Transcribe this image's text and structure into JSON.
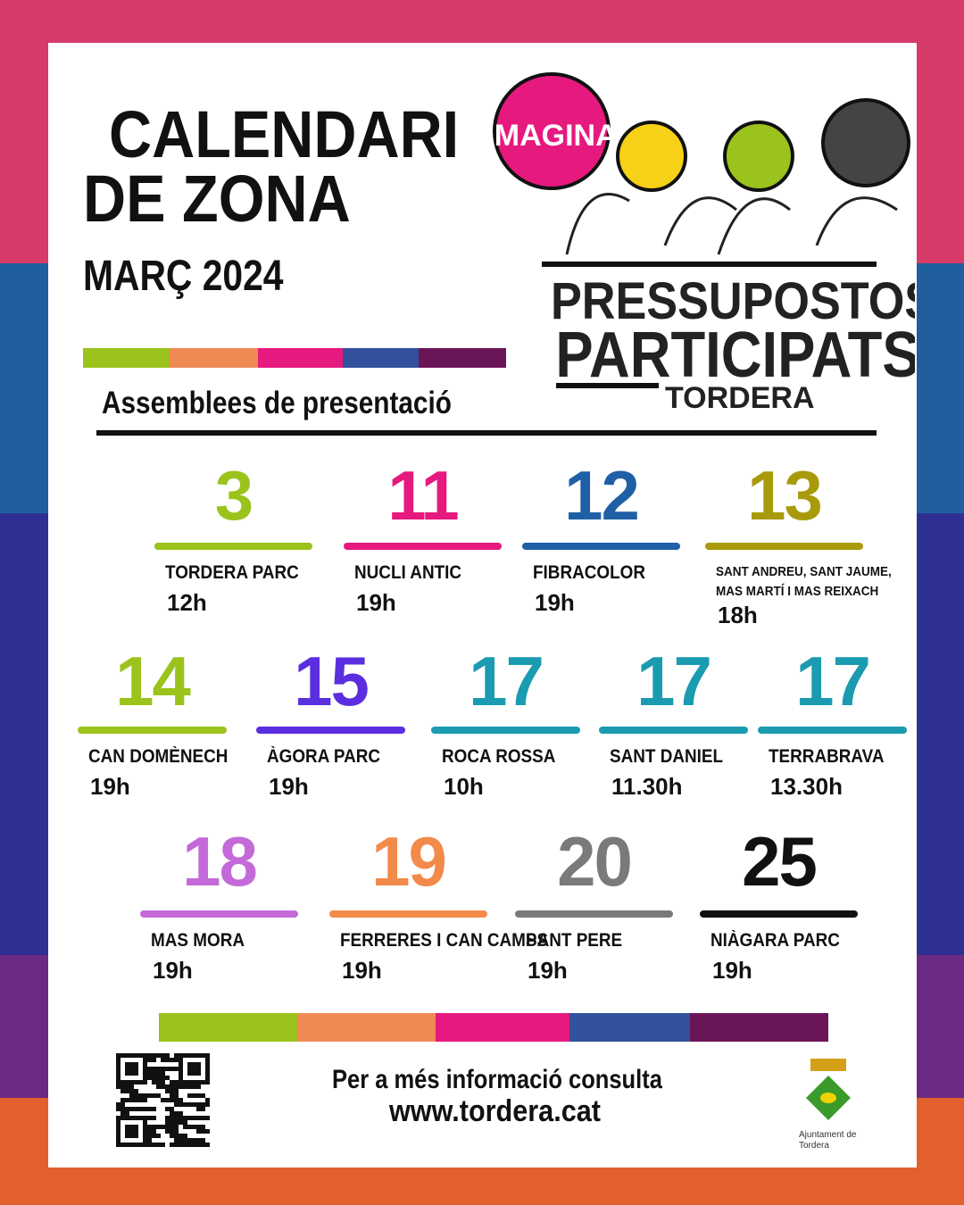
{
  "header": {
    "title_line1": "CALENDARI",
    "title_line2": "DE ZONA",
    "month": "MARÇ 2024",
    "subtitle": "Assemblees de presentació"
  },
  "logo": {
    "badge": "IMAGINA",
    "line1": "PRESSUPOSTOS",
    "line2": "PARTICIPATS",
    "line3": "TORDERA"
  },
  "rows": [
    [
      {
        "day": "3",
        "place": "TORDERA PARC",
        "time": "12h",
        "color": "#9ac31c"
      },
      {
        "day": "11",
        "place": "NUCLI ANTIC",
        "time": "19h",
        "color": "#e6197e"
      },
      {
        "day": "12",
        "place": "FIBRACOLOR",
        "time": "19h",
        "color": "#1f5fa6"
      },
      {
        "day": "13",
        "place": "SANT ANDREU, SANT JAUME, MAS MARTÍ I MAS REIXACH",
        "time": "18h",
        "color": "#a99a0c"
      }
    ],
    [
      {
        "day": "14",
        "place": "CAN DOMÈNECH",
        "time": "19h",
        "color": "#9ac31c"
      },
      {
        "day": "15",
        "place": "ÀGORA PARC",
        "time": "19h",
        "color": "#5b2fe0"
      },
      {
        "day": "17",
        "place": "ROCA ROSSA",
        "time": "10h",
        "color": "#1a9bb0"
      },
      {
        "day": "17",
        "place": "SANT DANIEL",
        "time": "11.30h",
        "color": "#1a9bb0"
      },
      {
        "day": "17",
        "place": "TERRABRAVA",
        "time": "13.30h",
        "color": "#1a9bb0"
      }
    ],
    [
      {
        "day": "18",
        "place": "MAS MORA",
        "time": "19h",
        "color": "#c36ad8"
      },
      {
        "day": "19",
        "place": "FERRERES I CAN CAMPS",
        "time": "19h",
        "color": "#f28a4a"
      },
      {
        "day": "20",
        "place": "SANT PERE",
        "time": "19h",
        "color": "#7a7a7a"
      },
      {
        "day": "25",
        "place": "NIÀGARA PARC",
        "time": "19h",
        "color": "#111111"
      }
    ]
  ],
  "footer": {
    "info": "Per a més informació consulta",
    "url": "www.tordera.cat",
    "council_line1": "Ajuntament de",
    "council_line2": "Tordera"
  }
}
